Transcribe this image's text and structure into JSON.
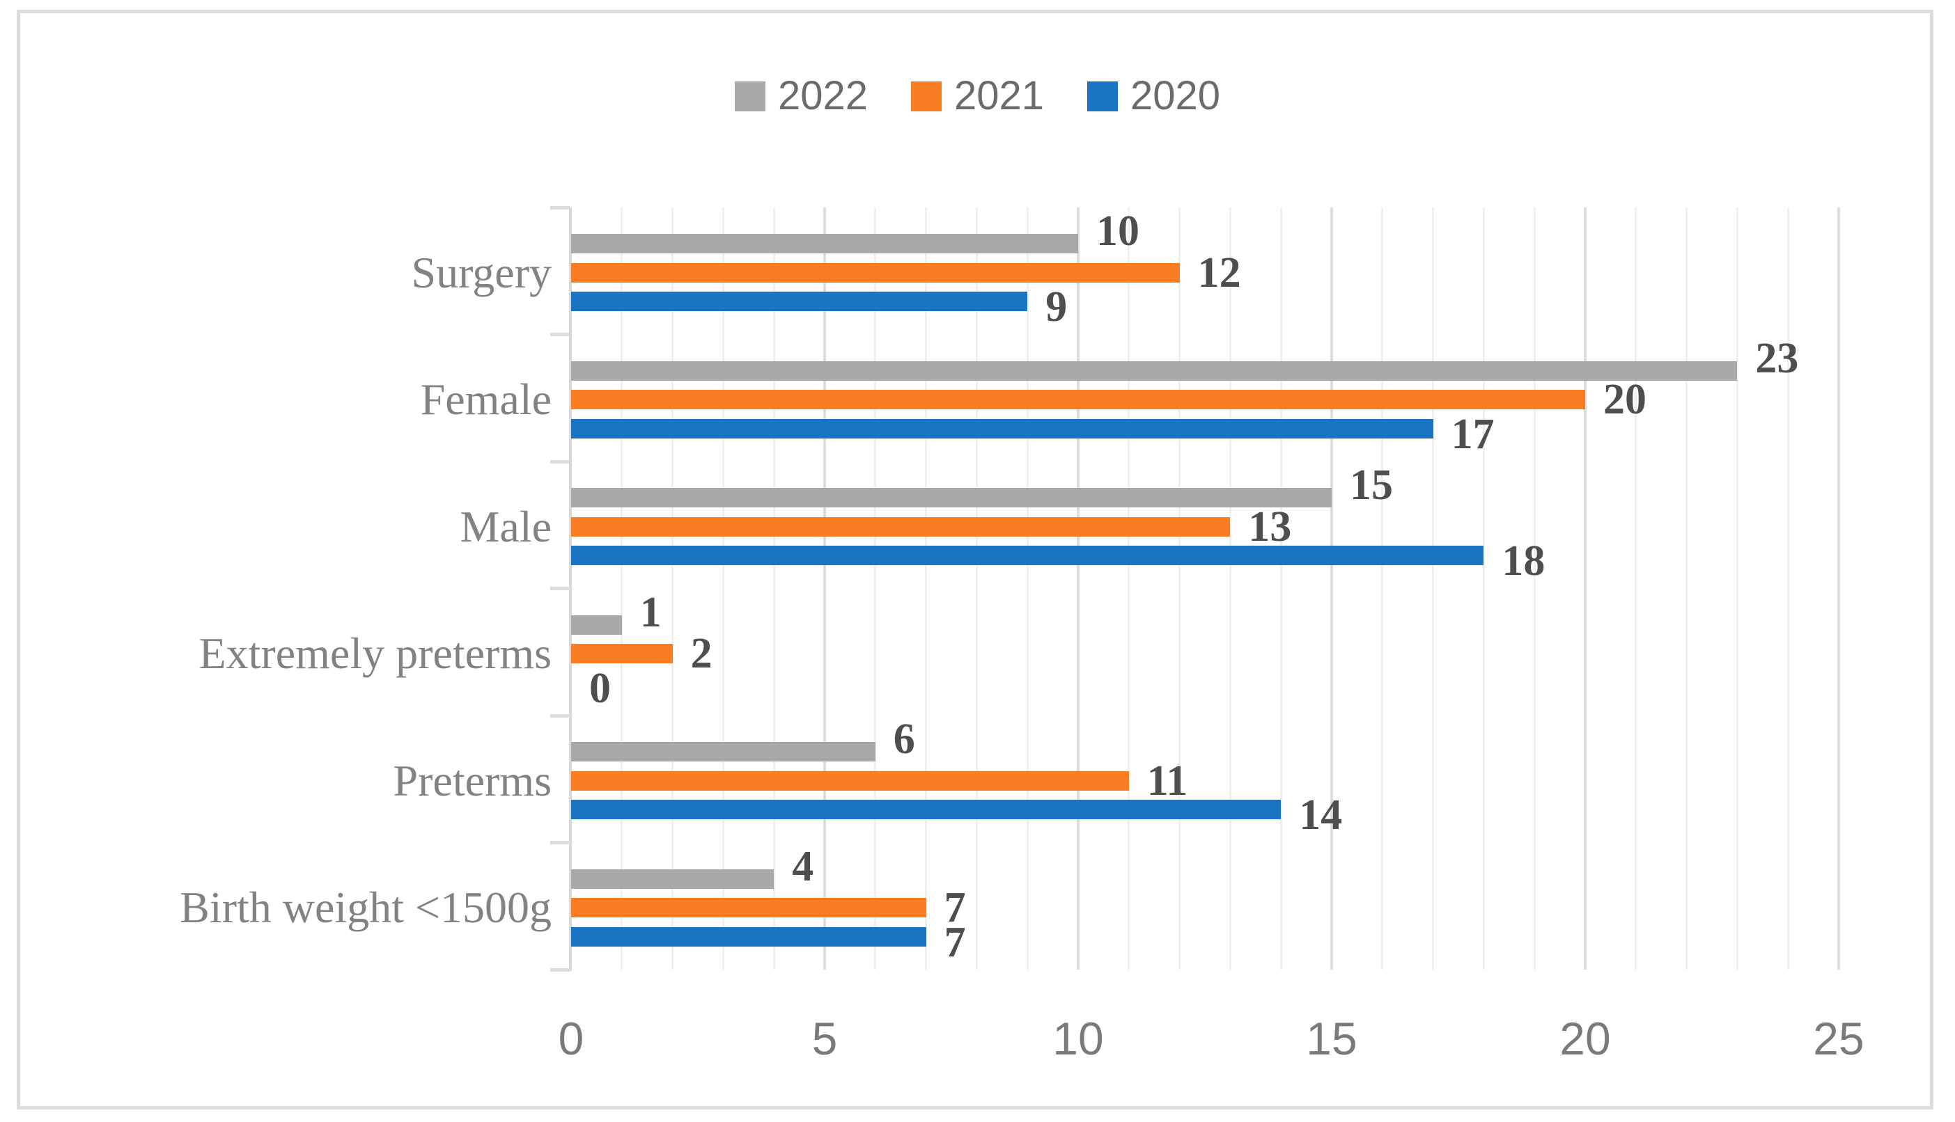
{
  "chart_data": {
    "type": "bar",
    "orientation": "horizontal",
    "title": "",
    "categories": [
      "Surgery",
      "Female",
      "Male",
      "Extremely preterms",
      "Preterms",
      "Birth weight <1500g"
    ],
    "series": [
      {
        "name": "2022",
        "color": "#A9A9A9",
        "values": [
          10,
          23,
          15,
          1,
          6,
          4
        ]
      },
      {
        "name": "2021",
        "color": "#FA7D24",
        "values": [
          12,
          20,
          13,
          2,
          11,
          7
        ]
      },
      {
        "name": "2020",
        "color": "#1B73C4",
        "values": [
          9,
          17,
          18,
          0,
          14,
          7
        ]
      }
    ],
    "x_axis": {
      "min": 0,
      "max": 25,
      "tick_labels": [
        "0",
        "5",
        "10",
        "15",
        "20",
        "25"
      ],
      "minor_unit": 1,
      "major_unit": 5
    },
    "legend": {
      "position": "top-center",
      "entries": [
        "2022",
        "2021",
        "2020"
      ]
    },
    "grid": "vertical gridlines on; minor every 1 unit, major every 5 units",
    "data_labels": "outside end of each bar"
  },
  "colors": {
    "series_2022": "#A9A9A9",
    "series_2021": "#FA7D24",
    "series_2020": "#1B73C4",
    "grid_minor": "#F0F0F0",
    "grid_major": "#DCDCDC",
    "axis_line": "#D9D9D9",
    "figure_border": "#DCDCDC",
    "legend_text": "#6B6B6B",
    "axis_tick_text": "#7A7A7A",
    "category_text": "#828282",
    "data_label_text": "#4E4E4E"
  }
}
